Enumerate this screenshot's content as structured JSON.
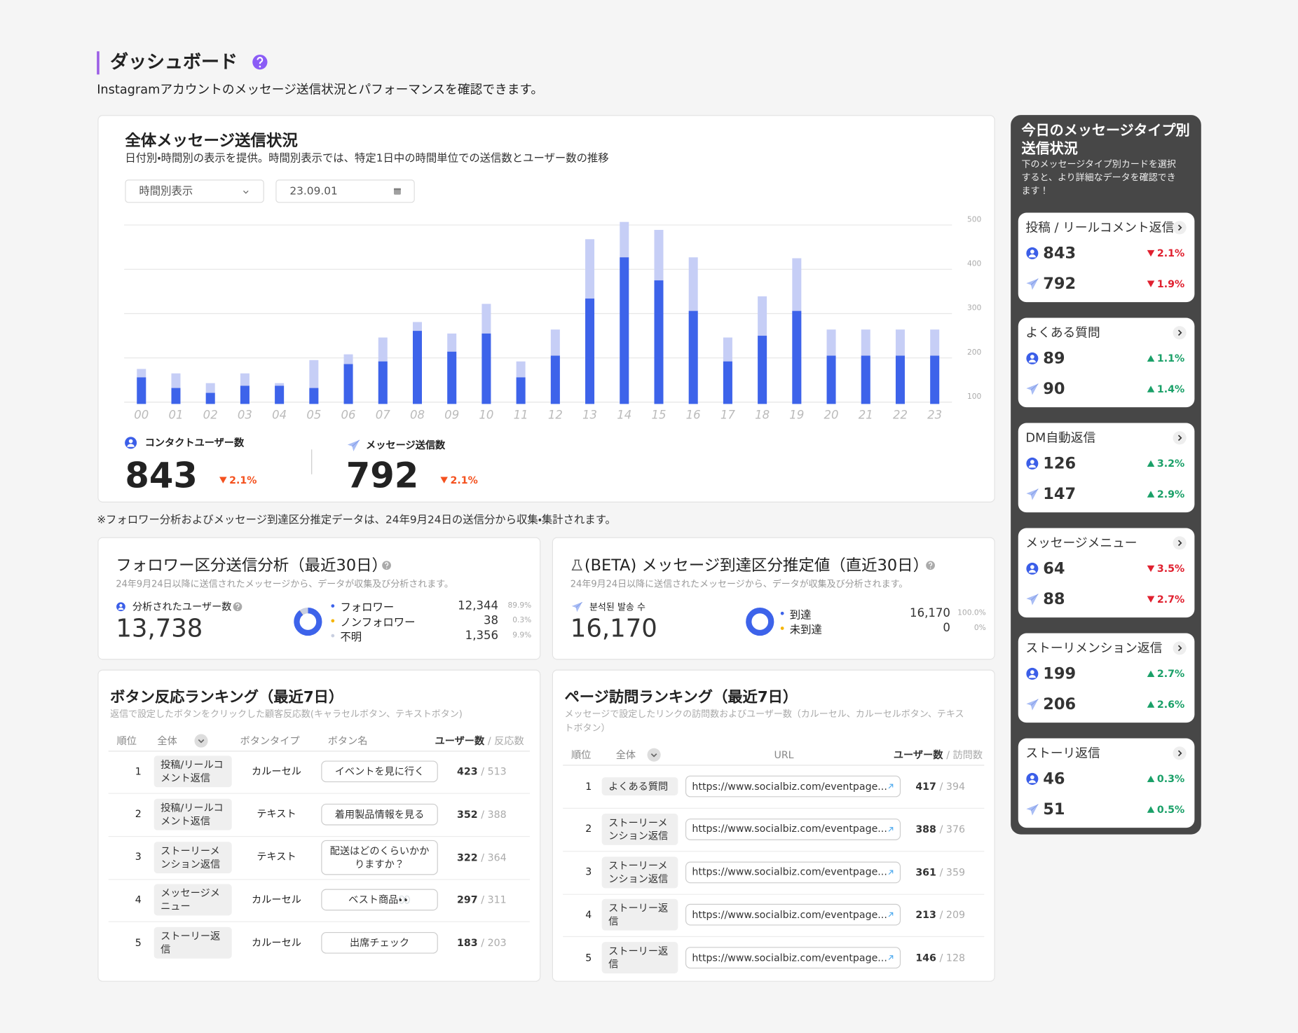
{
  "header": {
    "title": "ダッシュボード",
    "subtitle": "Instagramアカウントのメッセージ送信状況とパフォーマンスを確認できます。"
  },
  "overview": {
    "title": "全体メッセージ送信状況",
    "description": "日付別・時間別の表示を提供。時間別表示では、特定1日中の時間単位での送信数とユーザー数の推移",
    "view_select": "時間別表示",
    "date": "23.09.01",
    "users": {
      "value": "843",
      "change": "2.1%",
      "direction": "down"
    },
    "messages": {
      "value": "792",
      "change": "2.1%",
      "direction": "down"
    }
  },
  "note": "※フォロワー分析およびメッセージ到達区分推定データは、24年9月24日の送信分から収集・集計されます。",
  "chart_data": [
    {
      "type": "bar",
      "categories": [
        "00",
        "01",
        "02",
        "03",
        "04",
        "05",
        "06",
        "07",
        "08",
        "09",
        "10",
        "11",
        "12",
        "13",
        "14",
        "15",
        "16",
        "17",
        "18",
        "19",
        "20",
        "21",
        "22",
        "23"
      ],
      "series": [
        {
          "name": "コンタクトユーザー数",
          "color": "#3d63ea",
          "values": [
            156,
            132,
            121,
            137,
            137,
            132,
            186,
            192,
            261,
            214,
            255,
            156,
            205,
            334,
            427,
            375,
            306,
            192,
            250,
            306,
            205,
            205,
            205,
            205
          ]
        },
        {
          "name": "メッセージ送信数",
          "color": "#c6cef6",
          "values": [
            175,
            165,
            143,
            165,
            143,
            195,
            208,
            246,
            281,
            255,
            322,
            192,
            264,
            468,
            507,
            489,
            427,
            246,
            339,
            425,
            264,
            264,
            264,
            264
          ]
        }
      ],
      "ylim": [
        96,
        510
      ],
      "yticks": [
        100,
        200,
        300,
        400,
        500
      ],
      "grid": true
    },
    {
      "type": "donut",
      "categories": [
        "フォロワー",
        "ノンフォロワー",
        "不明"
      ],
      "values": [
        12344,
        38,
        1356
      ],
      "value_labels": [
        "12,344",
        "38",
        "1,356"
      ],
      "percent_labels": [
        "89.9%",
        "0.3%",
        "9.9%"
      ],
      "colors": [
        "#3d63ea",
        "#f5b400",
        "#c9cfe0"
      ]
    },
    {
      "type": "donut",
      "categories": [
        "到達",
        "未到達"
      ],
      "values": [
        16170,
        0
      ],
      "value_labels": [
        "16,170",
        "0"
      ],
      "percent_labels": [
        "100.0%",
        "0%"
      ],
      "colors": [
        "#3d63ea",
        "#f5b400"
      ]
    }
  ],
  "follower_analysis": {
    "title": "フォロワー区分送信分析（最近30日）",
    "description": "24年9月24日以降に送信されたメッセージから、データが収集及び分析されます。",
    "label": "分析されたユーザー数",
    "total": "13,738"
  },
  "reach_estimate": {
    "title": "(BETA) メッセージ到達区分推定値（直近30日）",
    "description": "24年9月24日以降に送信されたメッセージから、データが収集及び分析されます。",
    "label": "분석된 발송 수",
    "total": "16,170"
  },
  "button_ranking": {
    "title": "ボタン反応ランキング（最近7日）",
    "description": "返信で設定したボタンをクリックした顧客反応数(キャラセルボタン、テキストボタン)",
    "columns": [
      "順位",
      "全体",
      "ボタンタイプ",
      "ボタン名",
      "ユーザー数",
      "/ 反応数"
    ],
    "rows": [
      [
        "1",
        "投稿/リールコメント返信",
        "カルーセル",
        "イベントを見に行く",
        "423",
        "/ 513"
      ],
      [
        "2",
        "投稿/リールコメント返信",
        "テキスト",
        "着用製品情報を見る",
        "352",
        "/ 388"
      ],
      [
        "3",
        "ストーリーメンション返信",
        "テキスト",
        "配送はどのくらいかかりますか？",
        "322",
        "/ 364"
      ],
      [
        "4",
        "メッセージメニュー",
        "カルーセル",
        "ベスト商品👀",
        "297",
        "/ 311"
      ],
      [
        "5",
        "ストーリー返信",
        "カルーセル",
        "出席チェック",
        "183",
        "/ 203"
      ]
    ]
  },
  "page_ranking": {
    "title": "ページ訪問ランキング（最近7日）",
    "description": "メッセージで設定したリンクの訪問数およびユーザー数（カルーセル、カルーセルボタン、テキストボタン）",
    "columns": [
      "順位",
      "全体",
      "URL",
      "ユーザー数",
      "/ 訪問数"
    ],
    "rows": [
      [
        "1",
        "よくある質問",
        "https://www.socialbiz.com/eventpage...",
        "417",
        "/ 394"
      ],
      [
        "2",
        "ストーリーメンション返信",
        "https://www.socialbiz.com/eventpage...",
        "388",
        "/ 376"
      ],
      [
        "3",
        "ストーリーメンション返信",
        "https://www.socialbiz.com/eventpage...",
        "361",
        "/ 359"
      ],
      [
        "4",
        "ストーリー返信",
        "https://www.socialbiz.com/eventpage...",
        "213",
        "/ 209"
      ],
      [
        "5",
        "ストーリー返信",
        "https://www.socialbiz.com/eventpage...",
        "146",
        "/ 128"
      ]
    ]
  },
  "today_panel": {
    "title": "今日のメッセージタイプ別送信状況",
    "description": "下のメッセージタイプ別カードを選択すると、より詳細なデータを確認できます！",
    "cards": [
      {
        "title": "投稿 / リールコメント返信",
        "users": "843",
        "users_change": "2.1%",
        "users_direction": "down",
        "messages": "792",
        "messages_change": "1.9%",
        "messages_direction": "down"
      },
      {
        "title": "よくある質問",
        "users": "89",
        "users_change": "1.1%",
        "users_direction": "up",
        "messages": "90",
        "messages_change": "1.4%",
        "messages_direction": "up"
      },
      {
        "title": "DM自動返信",
        "users": "126",
        "users_change": "3.2%",
        "users_direction": "up",
        "messages": "147",
        "messages_change": "2.9%",
        "messages_direction": "up"
      },
      {
        "title": "メッセージメニュー",
        "users": "64",
        "users_change": "3.5%",
        "users_direction": "down",
        "messages": "88",
        "messages_change": "2.7%",
        "messages_direction": "down"
      },
      {
        "title": "ストーリメンション返信",
        "users": "199",
        "users_change": "2.7%",
        "users_direction": "up",
        "messages": "206",
        "messages_change": "2.6%",
        "messages_direction": "up"
      },
      {
        "title": "ストーリ返信",
        "users": "46",
        "users_change": "0.3%",
        "users_direction": "up",
        "messages": "51",
        "messages_change": "0.5%",
        "messages_direction": "up"
      }
    ]
  }
}
